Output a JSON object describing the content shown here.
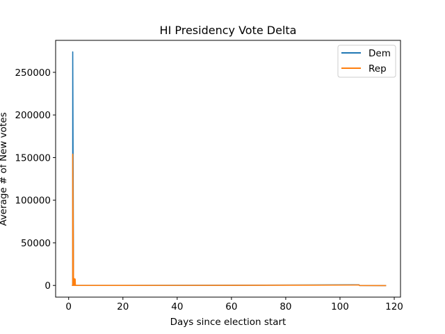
{
  "chart_data": {
    "type": "line",
    "title": "HI Presidency Vote Delta",
    "xlabel": "Days since election start",
    "ylabel": "Average # of New votes",
    "xlim": [
      -4.8,
      122.3
    ],
    "ylim": [
      -13700,
      287500
    ],
    "xticks": [
      0,
      20,
      40,
      60,
      80,
      100,
      120
    ],
    "yticks": [
      0,
      50000,
      100000,
      150000,
      200000,
      250000
    ],
    "legend_position": "top-right",
    "grid": false,
    "series": [
      {
        "name": "Dem",
        "color": "#1f77b4",
        "x": [
          1.2,
          1.5,
          1.5,
          1.8,
          1.8,
          2.0,
          2.3,
          3.0,
          20,
          60,
          90,
          107,
          107.2,
          117
        ],
        "y": [
          0,
          0,
          274000,
          0,
          200,
          500,
          0,
          0,
          0,
          200,
          500,
          800,
          -100,
          -200
        ]
      },
      {
        "name": "Rep",
        "color": "#ff7f0e",
        "x": [
          1.2,
          1.5,
          1.5,
          1.8,
          1.8,
          2.0,
          2.1,
          2.2,
          2.4,
          2.5,
          3.0,
          20,
          60,
          90,
          107,
          107.2,
          117
        ],
        "y": [
          0,
          0,
          154000,
          0,
          9000,
          1000,
          8000,
          0,
          7500,
          0,
          0,
          0,
          150,
          300,
          500,
          -100,
          -200
        ]
      }
    ]
  }
}
